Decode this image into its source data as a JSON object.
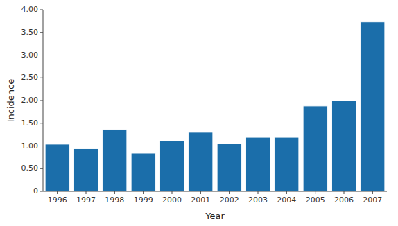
{
  "chart_data": {
    "type": "bar",
    "categories": [
      "1996",
      "1997",
      "1998",
      "1999",
      "2000",
      "2001",
      "2002",
      "2003",
      "2004",
      "2005",
      "2006",
      "2007"
    ],
    "values": [
      1.04,
      0.94,
      1.36,
      0.84,
      1.11,
      1.3,
      1.05,
      1.19,
      1.19,
      1.88,
      2.0,
      3.73
    ],
    "color": "#1b6eaa",
    "xlabel": "Year",
    "ylabel": "Incidence",
    "ylim": [
      0,
      4.0
    ],
    "yticks": [
      0,
      {
        "value": 0.5,
        "label": "0.50"
      },
      {
        "value": 1.0,
        "label": "1.00"
      },
      {
        "value": 1.5,
        "label": "1.50"
      },
      {
        "value": 2.0,
        "label": "2.00"
      },
      {
        "value": 2.5,
        "label": "2.50"
      },
      {
        "value": 3.0,
        "label": "3.00"
      },
      {
        "value": 3.5,
        "label": "3.50"
      },
      {
        "value": 4.0,
        "label": "4.00"
      }
    ],
    "grid": false
  }
}
